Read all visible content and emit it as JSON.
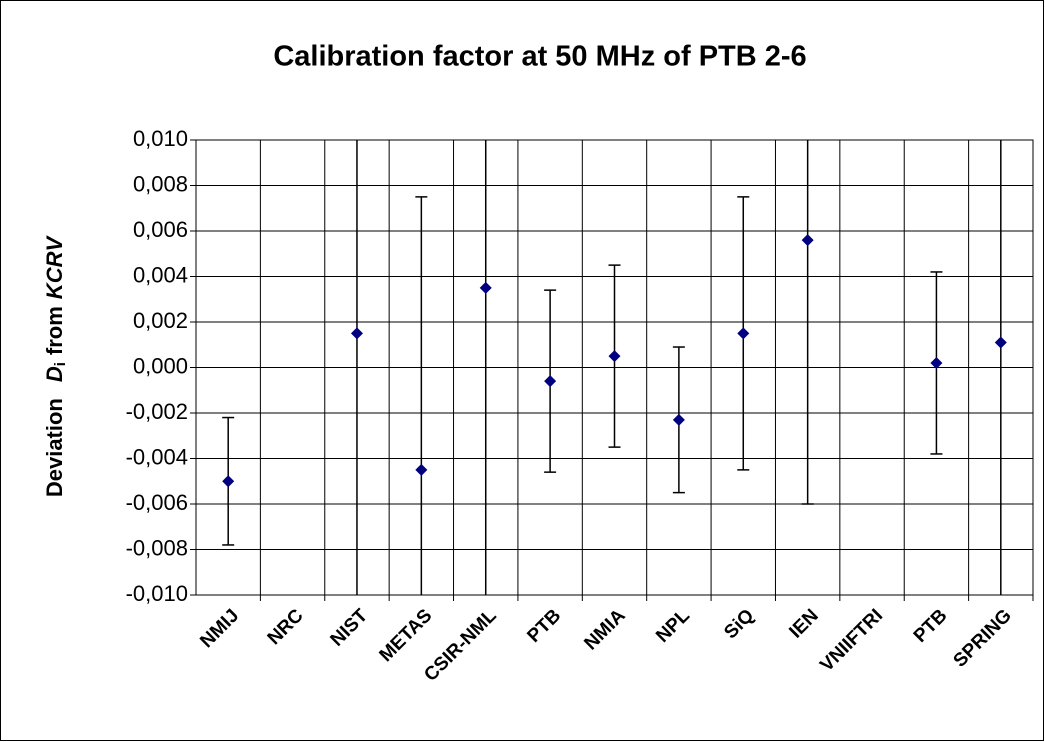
{
  "chart_data": {
    "type": "errorbar",
    "title": "Calibration factor at 50 MHz of PTB 2-6",
    "y_label": {
      "prefix": "Deviation",
      "symbol": "D",
      "subscript": "i",
      "middle": "from",
      "reference": "KCRV"
    },
    "categories": [
      "NMIJ",
      "NRC",
      "NIST",
      "METAS",
      "CSIR-NML",
      "PTB",
      "NMIA",
      "NPL",
      "SiQ",
      "IEN",
      "VNIIFTRI",
      "PTB",
      "SPRING"
    ],
    "values": [
      -0.005,
      null,
      0.0015,
      -0.0045,
      0.0035,
      -0.0006,
      0.0005,
      -0.0023,
      0.0015,
      0.0056,
      null,
      0.0002,
      0.0011
    ],
    "errors": [
      0.0028,
      null,
      0.012,
      0.012,
      0.014,
      0.004,
      0.004,
      0.0032,
      0.006,
      0.0116,
      null,
      0.004,
      0.012
    ],
    "color": "#000080",
    "ylim": [
      -0.01,
      0.01
    ],
    "yticks": [
      {
        "value": -0.01,
        "label": "-0,010"
      },
      {
        "value": -0.008,
        "label": "-0,008"
      },
      {
        "value": -0.006,
        "label": "-0,006"
      },
      {
        "value": -0.004,
        "label": "-0,004"
      },
      {
        "value": -0.002,
        "label": "-0,002"
      },
      {
        "value": 0,
        "label": "0,000"
      },
      {
        "value": 0.002,
        "label": "0,002"
      },
      {
        "value": 0.004,
        "label": "0,004"
      },
      {
        "value": 0.006,
        "label": "0,006"
      },
      {
        "value": 0.008,
        "label": "0,008"
      },
      {
        "value": 0.01,
        "label": "0,010"
      }
    ],
    "grid": true
  }
}
